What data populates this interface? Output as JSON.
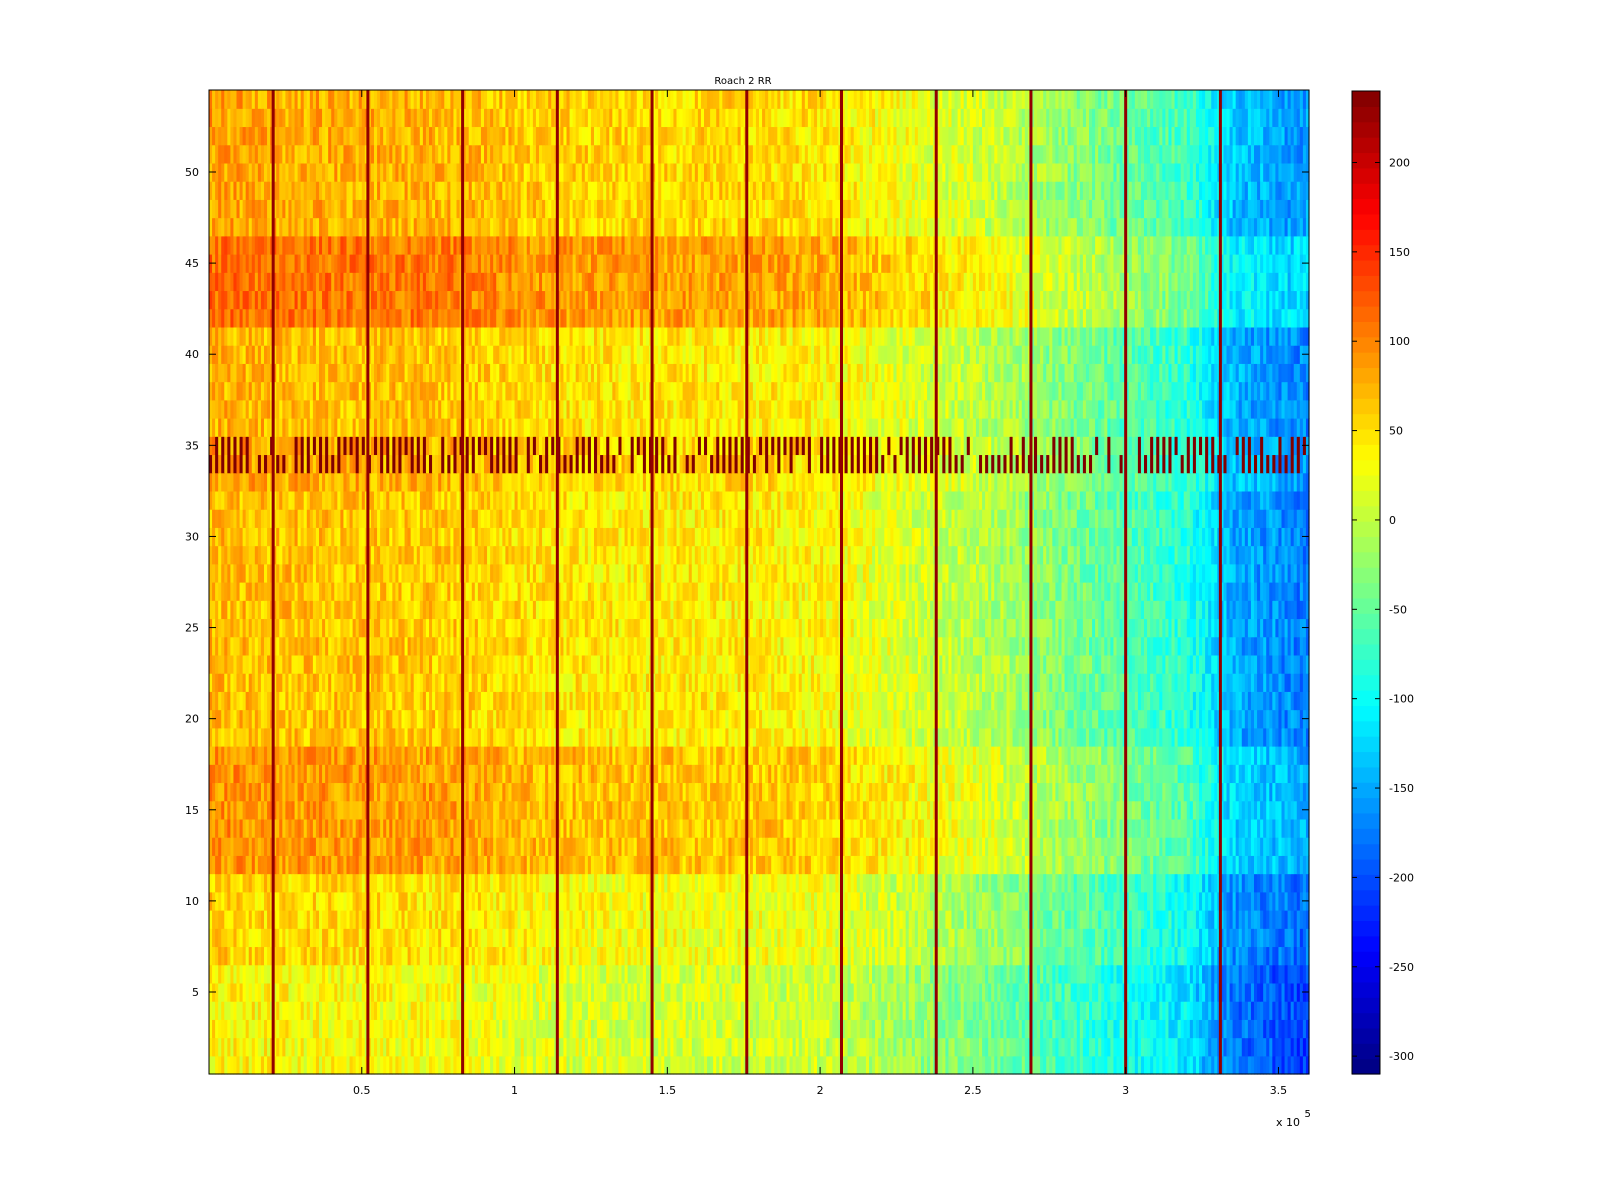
{
  "chart_data": {
    "type": "heatmap",
    "title": "Roach 2 RR",
    "xlabel": "",
    "ylabel": "",
    "x_exponent_label": "x 10",
    "x_exponent_power": "5",
    "x_scale": 100000,
    "xlim": [
      0,
      360000
    ],
    "ylim": [
      0.5,
      54.5
    ],
    "rows": 54,
    "x_ticks": [
      {
        "value": 50000,
        "label": "0.5"
      },
      {
        "value": 100000,
        "label": "1"
      },
      {
        "value": 150000,
        "label": "1.5"
      },
      {
        "value": 200000,
        "label": "2"
      },
      {
        "value": 250000,
        "label": "2.5"
      },
      {
        "value": 300000,
        "label": "3"
      },
      {
        "value": 350000,
        "label": "3.5"
      }
    ],
    "y_ticks": [
      {
        "value": 5,
        "label": "5"
      },
      {
        "value": 10,
        "label": "10"
      },
      {
        "value": 15,
        "label": "15"
      },
      {
        "value": 20,
        "label": "20"
      },
      {
        "value": 25,
        "label": "25"
      },
      {
        "value": 30,
        "label": "30"
      },
      {
        "value": 35,
        "label": "35"
      },
      {
        "value": 40,
        "label": "40"
      },
      {
        "value": 45,
        "label": "45"
      },
      {
        "value": 50,
        "label": "50"
      }
    ],
    "colorbar": {
      "colormap": "jet",
      "range": [
        -310,
        240
      ],
      "ticks": [
        {
          "value": 200,
          "label": "200"
        },
        {
          "value": 150,
          "label": "150"
        },
        {
          "value": 100,
          "label": "100"
        },
        {
          "value": 50,
          "label": "50"
        },
        {
          "value": 0,
          "label": "0"
        },
        {
          "value": -50,
          "label": "-50"
        },
        {
          "value": -100,
          "label": "-100"
        },
        {
          "value": -150,
          "label": "-150"
        },
        {
          "value": -200,
          "label": "-200"
        },
        {
          "value": -250,
          "label": "-250"
        },
        {
          "value": -300,
          "label": "-300"
        }
      ]
    },
    "column_trend": {
      "x": [
        0,
        20000,
        50000,
        80000,
        110000,
        140000,
        170000,
        200000,
        230000,
        260000,
        290000,
        320000,
        335000,
        360000
      ],
      "value": [
        60,
        55,
        52,
        48,
        35,
        30,
        30,
        24,
        0,
        -25,
        -60,
        -95,
        -160,
        -185
      ]
    },
    "row_band_offsets": [
      {
        "rows": [
          1,
          6
        ],
        "offset": -20
      },
      {
        "rows": [
          7,
          11
        ],
        "offset": 0
      },
      {
        "rows": [
          12,
          18
        ],
        "offset": 35
      },
      {
        "rows": [
          19,
          32
        ],
        "offset": 12
      },
      {
        "rows": [
          33,
          35
        ],
        "offset": 25
      },
      {
        "rows": [
          36,
          41
        ],
        "offset": 15
      },
      {
        "rows": [
          42,
          46
        ],
        "offset": 55
      },
      {
        "rows": [
          47,
          54
        ],
        "offset": 25
      }
    ],
    "high_value_columns_x": [
      21000,
      52000,
      83000,
      114000,
      145000,
      176000,
      207000,
      238000,
      269000,
      300000,
      331000
    ],
    "high_value_columns_value": 230,
    "striped_rows": [
      34,
      35
    ],
    "striped_rows_value": 240
  }
}
